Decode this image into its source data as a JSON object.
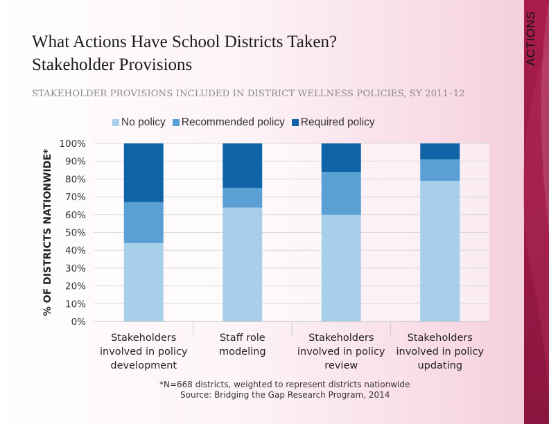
{
  "side_label": "ACTIONS",
  "title_line1": "What Actions Have School Districts Taken?",
  "title_line2": "Stakeholder Provisions",
  "footnote_line1": "*N=668 districts, weighted to represent districts nationwide",
  "footnote_line2": "Source: Bridging the Gap Research Program, 2014",
  "colors": {
    "no_policy": "#a7cfea",
    "recommended": "#5aa0d4",
    "required": "#0f64a8",
    "band": "#a81c4c"
  },
  "chart_data": {
    "type": "bar",
    "stacked": true,
    "title": "STAKEHOLDER PROVISIONS INCLUDED IN DISTRICT WELLNESS POLICIES, SY 2011–12",
    "ylabel": "% OF DISTRICTS NATIONWIDE*",
    "xlabel": "",
    "ylim": [
      0,
      100
    ],
    "yticks": [
      "0%",
      "10%",
      "20%",
      "30%",
      "40%",
      "50%",
      "60%",
      "70%",
      "80%",
      "90%",
      "100%"
    ],
    "legend_position": "top",
    "grid": true,
    "categories": [
      [
        "Stakeholders",
        "involved in policy",
        "development"
      ],
      [
        "Staff role",
        "modeling"
      ],
      [
        "Stakeholders",
        "involved in policy",
        "review"
      ],
      [
        "Stakeholders",
        "involved in policy",
        "updating"
      ]
    ],
    "series": [
      {
        "name": "No policy",
        "values": [
          44,
          64,
          60,
          79
        ]
      },
      {
        "name": "Recommended policy",
        "values": [
          23,
          11,
          24,
          12
        ]
      },
      {
        "name": "Required policy",
        "values": [
          33,
          25,
          16,
          9
        ]
      }
    ]
  }
}
